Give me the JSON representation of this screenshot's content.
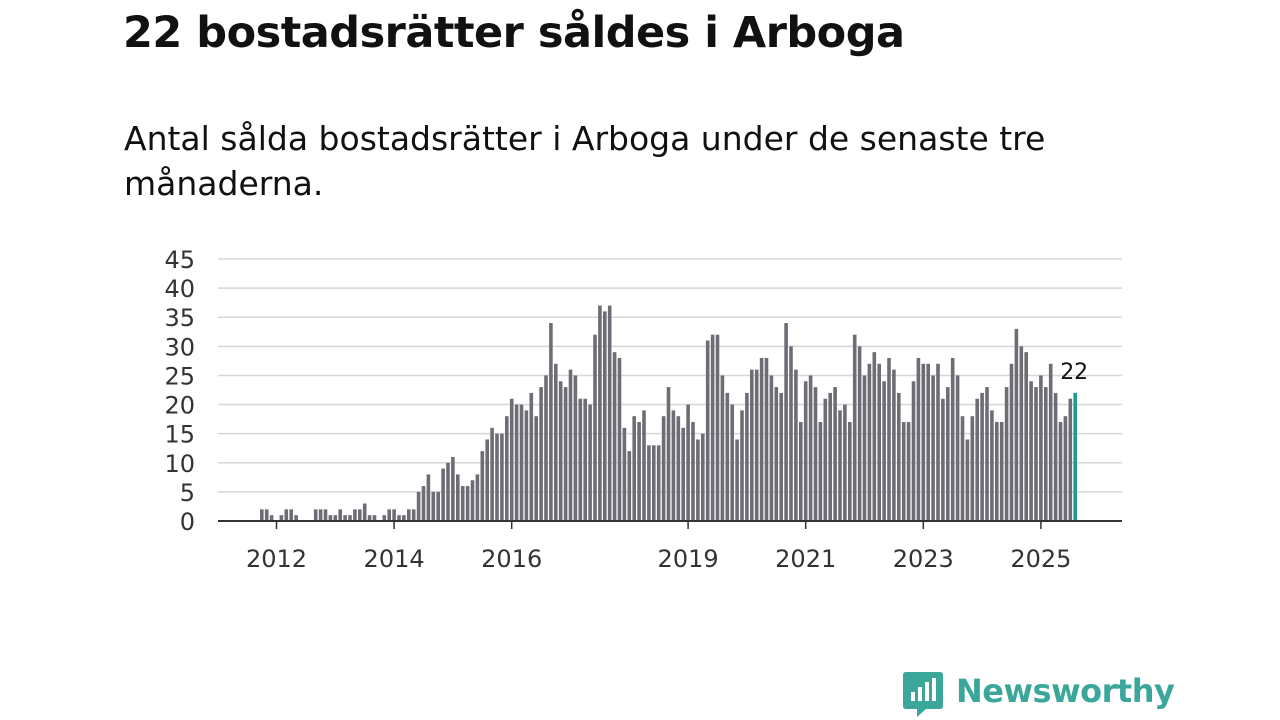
{
  "header": {
    "title": "22 bostadsrätter såldes i Arboga",
    "subtitle": "Antal sålda bostadsrätter i Arboga under de senaste tre månaderna."
  },
  "brand": {
    "name": "Newsworthy",
    "icon": "newsworthy-logo-icon",
    "color": "#3aa79a"
  },
  "chart_data": {
    "type": "bar",
    "title": "22 bostadsrätter såldes i Arboga",
    "subtitle": "Antal sålda bostadsrätter i Arboga under de senaste tre månaderna.",
    "xlabel": "",
    "ylabel": "",
    "ylim": [
      0,
      45
    ],
    "yticks": [
      0,
      5,
      10,
      15,
      20,
      25,
      30,
      35,
      40,
      45
    ],
    "grid": true,
    "legend": "none",
    "start_period": "2012-01",
    "frequency": "monthly",
    "xtick_labels": [
      {
        "label": "2012",
        "index": 3
      },
      {
        "label": "2014",
        "index": 27
      },
      {
        "label": "2016",
        "index": 51
      },
      {
        "label": "2019",
        "index": 87
      },
      {
        "label": "2021",
        "index": 111
      },
      {
        "label": "2023",
        "index": 135
      },
      {
        "label": "2025",
        "index": 159
      }
    ],
    "highlight": {
      "index": 166,
      "label": "22",
      "color": "#1a9c94"
    },
    "bar_color": "#6e6d75",
    "values": [
      2,
      2,
      1,
      0,
      1,
      2,
      2,
      1,
      0,
      0,
      0,
      2,
      2,
      2,
      1,
      1,
      2,
      1,
      1,
      2,
      2,
      3,
      1,
      1,
      0,
      1,
      2,
      2,
      1,
      1,
      2,
      2,
      5,
      6,
      8,
      5,
      5,
      9,
      10,
      11,
      8,
      6,
      6,
      7,
      8,
      12,
      14,
      16,
      15,
      15,
      18,
      21,
      20,
      20,
      19,
      22,
      18,
      23,
      25,
      34,
      27,
      24,
      23,
      26,
      25,
      21,
      21,
      20,
      32,
      37,
      36,
      37,
      29,
      28,
      16,
      12,
      18,
      17,
      19,
      13,
      13,
      13,
      18,
      23,
      19,
      18,
      16,
      20,
      17,
      14,
      15,
      31,
      32,
      32,
      25,
      22,
      20,
      14,
      19,
      22,
      26,
      26,
      28,
      28,
      25,
      23,
      22,
      34,
      30,
      26,
      17,
      24,
      25,
      23,
      17,
      21,
      22,
      23,
      19,
      20,
      17,
      32,
      30,
      25,
      27,
      29,
      27,
      24,
      28,
      26,
      22,
      17,
      17,
      24,
      28,
      27,
      27,
      25,
      27,
      21,
      23,
      28,
      25,
      18,
      14,
      18,
      21,
      22,
      23,
      19,
      17,
      17,
      23,
      27,
      33,
      30,
      29,
      24,
      23,
      25,
      23,
      27,
      22,
      17,
      18,
      21,
      22
    ]
  }
}
